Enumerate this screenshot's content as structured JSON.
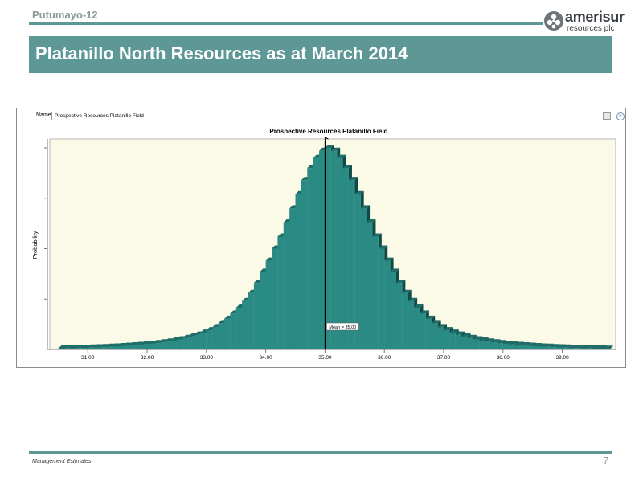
{
  "header": {
    "section_label": "Putumayo-12",
    "logo_name": "amerisur",
    "logo_sub": "resources plc",
    "title": "Platanillo North Resources as at March 2014"
  },
  "colors": {
    "accent": "#5e9896",
    "bar": "#2a8a84",
    "plot_bg": "#fbfae6"
  },
  "chart_panel": {
    "name_label": "Name:",
    "name_value": "Prospective Resources Platanillo Field"
  },
  "chart_data": {
    "type": "bar",
    "title": "Prospective Resources Platanillo Field",
    "xlabel": "",
    "ylabel": "Probability",
    "xlim": [
      30.4,
      39.9
    ],
    "ylim": [
      0,
      1.02
    ],
    "x_ticks": [
      "31.00",
      "32.00",
      "33.00",
      "34.00",
      "35.00",
      "36.00",
      "37.00",
      "38.00",
      "39.00"
    ],
    "mean": 35.0,
    "mean_label": "Mean = 35.00",
    "bin_width": 0.1,
    "x": [
      30.55,
      30.65,
      30.75,
      30.85,
      30.95,
      31.05,
      31.15,
      31.25,
      31.35,
      31.45,
      31.55,
      31.65,
      31.75,
      31.85,
      31.95,
      32.05,
      32.15,
      32.25,
      32.35,
      32.45,
      32.55,
      32.65,
      32.75,
      32.85,
      32.95,
      33.05,
      33.15,
      33.25,
      33.35,
      33.45,
      33.55,
      33.65,
      33.75,
      33.85,
      33.95,
      34.05,
      34.15,
      34.25,
      34.35,
      34.45,
      34.55,
      34.65,
      34.75,
      34.85,
      34.95,
      35.05,
      35.15,
      35.25,
      35.35,
      35.45,
      35.55,
      35.65,
      35.75,
      35.85,
      35.95,
      36.05,
      36.15,
      36.25,
      36.35,
      36.45,
      36.55,
      36.65,
      36.75,
      36.85,
      36.95,
      37.05,
      37.15,
      37.25,
      37.35,
      37.45,
      37.55,
      37.65,
      37.75,
      37.85,
      37.95,
      38.05,
      38.15,
      38.25,
      38.35,
      38.45,
      38.55,
      38.65,
      38.75,
      38.85,
      38.95,
      39.05,
      39.15,
      39.25,
      39.35,
      39.45,
      39.55,
      39.65,
      39.75
    ],
    "values": [
      0.004,
      0.005,
      0.006,
      0.007,
      0.008,
      0.009,
      0.01,
      0.011,
      0.013,
      0.014,
      0.016,
      0.018,
      0.02,
      0.022,
      0.025,
      0.028,
      0.031,
      0.035,
      0.039,
      0.044,
      0.05,
      0.057,
      0.064,
      0.073,
      0.083,
      0.095,
      0.11,
      0.13,
      0.152,
      0.178,
      0.207,
      0.24,
      0.28,
      0.33,
      0.385,
      0.44,
      0.5,
      0.56,
      0.63,
      0.7,
      0.77,
      0.84,
      0.9,
      0.95,
      0.985,
      1.0,
      0.985,
      0.95,
      0.9,
      0.84,
      0.77,
      0.7,
      0.63,
      0.56,
      0.5,
      0.44,
      0.385,
      0.33,
      0.28,
      0.24,
      0.207,
      0.178,
      0.152,
      0.13,
      0.11,
      0.095,
      0.083,
      0.073,
      0.064,
      0.057,
      0.05,
      0.044,
      0.039,
      0.035,
      0.031,
      0.028,
      0.025,
      0.022,
      0.02,
      0.018,
      0.016,
      0.014,
      0.013,
      0.011,
      0.01,
      0.009,
      0.008,
      0.007,
      0.006,
      0.005,
      0.004,
      0.004,
      0.003
    ]
  },
  "footer": {
    "note": "Management Estimates",
    "page_number": "7"
  }
}
